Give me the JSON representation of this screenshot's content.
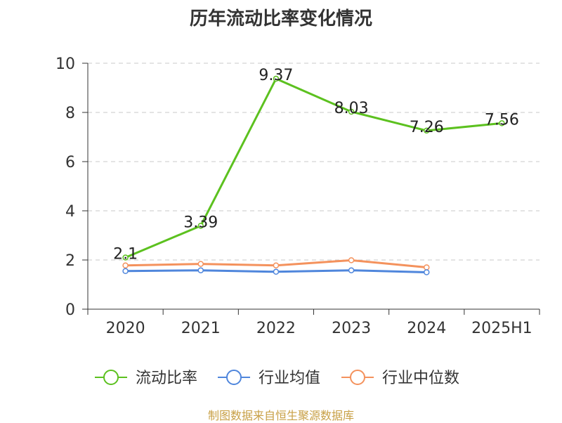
{
  "chart_data": {
    "type": "line",
    "title": "历年流动比率变化情况",
    "xlabel": "",
    "ylabel": "",
    "categories": [
      "2020",
      "2021",
      "2022",
      "2023",
      "2024",
      "2025H1"
    ],
    "ylim": [
      0,
      10
    ],
    "yticks": [
      0,
      2,
      4,
      6,
      8,
      10
    ],
    "grid": true,
    "legend_position": "bottom",
    "series": [
      {
        "name": "流动比率",
        "color": "#5cc11f",
        "values": [
          2.1,
          3.39,
          9.37,
          8.03,
          7.26,
          7.56
        ],
        "data_labels": [
          "2.1",
          "3.39",
          "9.37",
          "8.03",
          "7.26",
          "7.56"
        ]
      },
      {
        "name": "行业均值",
        "color": "#4f86dc",
        "values": [
          1.55,
          1.58,
          1.52,
          1.58,
          1.5,
          null
        ]
      },
      {
        "name": "行业中位数",
        "color": "#f4925d",
        "values": [
          1.78,
          1.84,
          1.78,
          1.99,
          1.7,
          null
        ]
      }
    ]
  },
  "source_note": "制图数据来自恒生聚源数据库"
}
